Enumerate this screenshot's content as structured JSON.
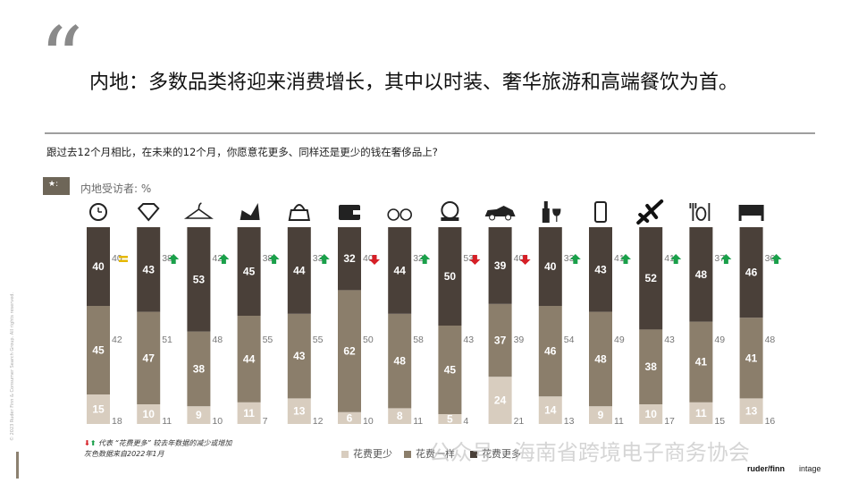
{
  "page": {
    "quote_mark": "“",
    "headline": "内地：多数品类将迎来消费增长，其中以时装、奢华旅游和高端餐饮为首。",
    "question": "跟过去12个月相比，在未来的12个月，你愿意花更多、同样还是更少的钱在奢侈品上?",
    "respondent_label": "内地受访者: %",
    "copyright": "© 2023 Ruder Finn & Consumer Search Group. All rights reserved.",
    "note_line1_suffix": "代表 “花费更多” 较去年数据的减少或增加",
    "note_line2": "灰色数据来自2022年1月",
    "watermark": "公众号 · 海南省跨境电子商务协会",
    "logo_ruderfinn": "ruder/finn",
    "logo_intage": "intage"
  },
  "legend": [
    {
      "label": "花费更少",
      "color": "#d8cdbf"
    },
    {
      "label": "花费一样",
      "color": "#8b7e6b"
    },
    {
      "label": "花费更多",
      "color": "#4a4039"
    }
  ],
  "chart_data": {
    "type": "bar",
    "stacked": true,
    "ylim": [
      0,
      100
    ],
    "categories": [
      "watch-icon",
      "diamond-icon",
      "hanger-icon",
      "high-heel-icon",
      "handbag-icon",
      "wallet-icon",
      "glasses-icon",
      "compact-mirror-icon",
      "car-icon",
      "wine-icon",
      "phone-icon",
      "airplane-icon",
      "dining-icon",
      "bed-icon"
    ],
    "series": [
      {
        "name": "花费更少",
        "values": [
          15,
          10,
          9,
          11,
          13,
          6,
          8,
          5,
          24,
          14,
          9,
          10,
          11,
          13
        ],
        "color": "#d8cdbf"
      },
      {
        "name": "花费一样",
        "values": [
          45,
          47,
          38,
          44,
          43,
          62,
          48,
          45,
          37,
          46,
          48,
          38,
          41,
          41
        ],
        "color": "#8b7e6b"
      },
      {
        "name": "花费更多",
        "values": [
          40,
          43,
          53,
          45,
          44,
          32,
          44,
          50,
          39,
          40,
          43,
          52,
          48,
          46
        ],
        "color": "#4a4039"
      }
    ],
    "prior_2022": {
      "more": [
        40,
        38,
        42,
        38,
        33,
        40,
        32,
        53,
        40,
        33,
        41,
        41,
        37,
        36
      ],
      "same": [
        42,
        51,
        48,
        55,
        55,
        50,
        58,
        43,
        39,
        54,
        49,
        43,
        49,
        48
      ],
      "less": [
        18,
        11,
        10,
        7,
        12,
        10,
        11,
        4,
        21,
        13,
        11,
        17,
        15,
        16
      ]
    },
    "change": [
      "equal",
      "up",
      "up",
      "up",
      "up",
      "down",
      "up",
      "down",
      "down",
      "up",
      "up",
      "up",
      "up",
      "up"
    ]
  }
}
